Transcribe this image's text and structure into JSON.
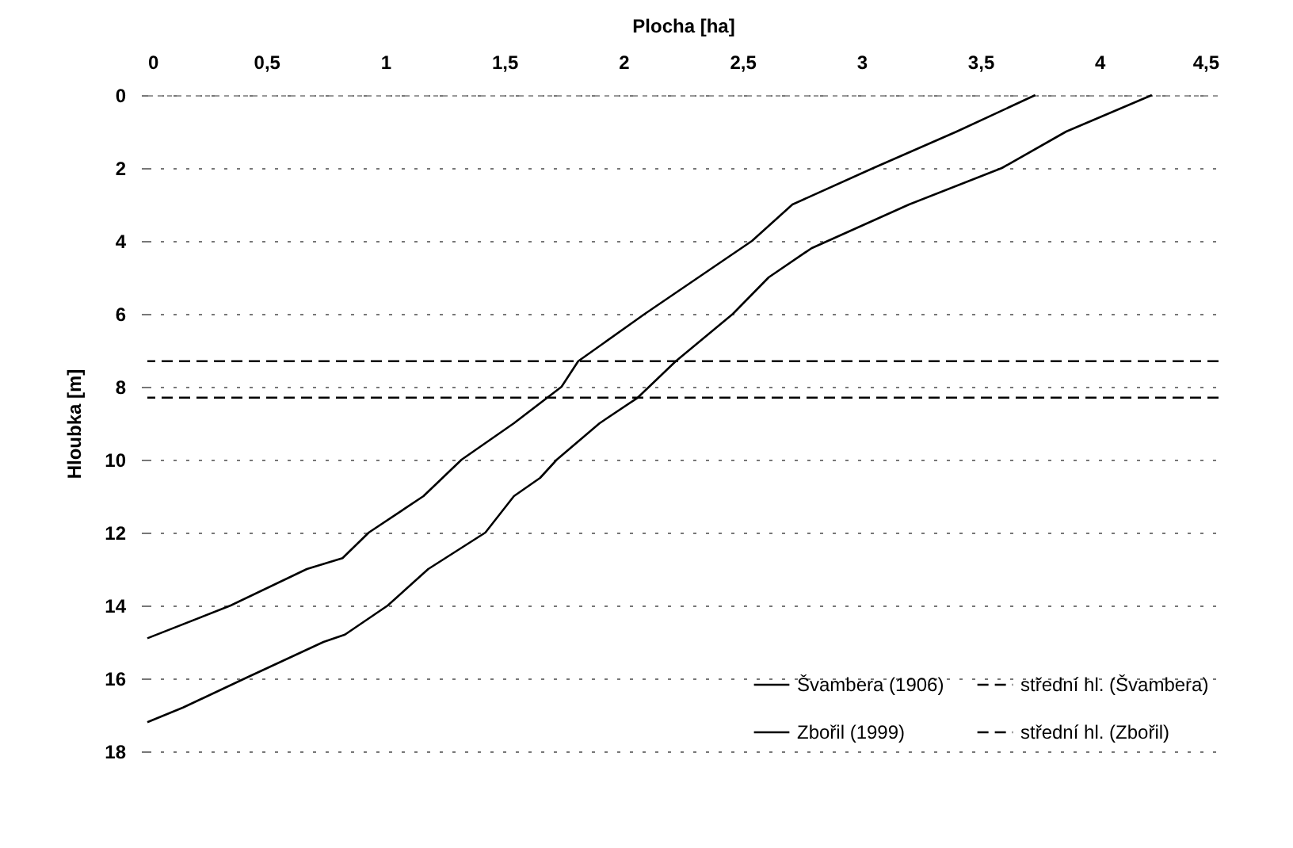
{
  "chart_data": {
    "type": "line",
    "xlabel": "Plocha [ha]",
    "ylabel": "Hloubka [m]",
    "xlim": [
      0,
      4.5
    ],
    "xticks": [
      0,
      {
        "value": 0.5,
        "label": "0,5"
      },
      1,
      {
        "value": 1.5,
        "label": "1,5"
      },
      2,
      {
        "value": 2.5,
        "label": "2,5"
      },
      3,
      {
        "value": 3.5,
        "label": "3,5"
      },
      4,
      {
        "value": 4.5,
        "label": "4,5"
      }
    ],
    "ylim": [
      18,
      0
    ],
    "yticks": [
      0,
      2,
      4,
      6,
      8,
      10,
      12,
      14,
      16,
      18
    ],
    "grid": "y",
    "legend": "bottom right",
    "line_style": "solid",
    "marker": "none",
    "series": [
      {
        "name": "Švambera (1906)",
        "color": "#000000",
        "x": [
          3.73,
          3.4,
          3.05,
          2.71,
          2.54,
          2.09,
          1.81,
          1.74,
          1.54,
          1.32,
          1.16,
          0.93,
          0.82,
          0.67,
          0.35,
          0
        ],
        "values": [
          0,
          1,
          2,
          3,
          4,
          6,
          7.3,
          8,
          9,
          10,
          11,
          12,
          12.7,
          13,
          14,
          14.9
        ]
      },
      {
        "name": "Zbořil (1999)",
        "color": "#000000",
        "x": [
          4.22,
          3.86,
          3.59,
          3.2,
          2.79,
          2.61,
          2.46,
          2.22,
          2.06,
          1.9,
          1.72,
          1.65,
          1.54,
          1.42,
          1.18,
          1.01,
          0.83,
          0.74,
          0.41,
          0.15,
          0
        ],
        "values": [
          0,
          1,
          2,
          3,
          4.2,
          5,
          6,
          7.3,
          8.3,
          9,
          10,
          10.5,
          11,
          12,
          13,
          14,
          14.8,
          15,
          16,
          16.8,
          17.2
        ]
      }
    ],
    "ref_lines": [
      {
        "axis": "y",
        "value": 7.3,
        "label": "střední hl. (Švambera)",
        "color": "#000000",
        "line_style": "dashed"
      },
      {
        "axis": "y",
        "value": 8.3,
        "label": "střední hl. (Zbořil)",
        "color": "#000000",
        "line_style": "dashed"
      }
    ]
  }
}
